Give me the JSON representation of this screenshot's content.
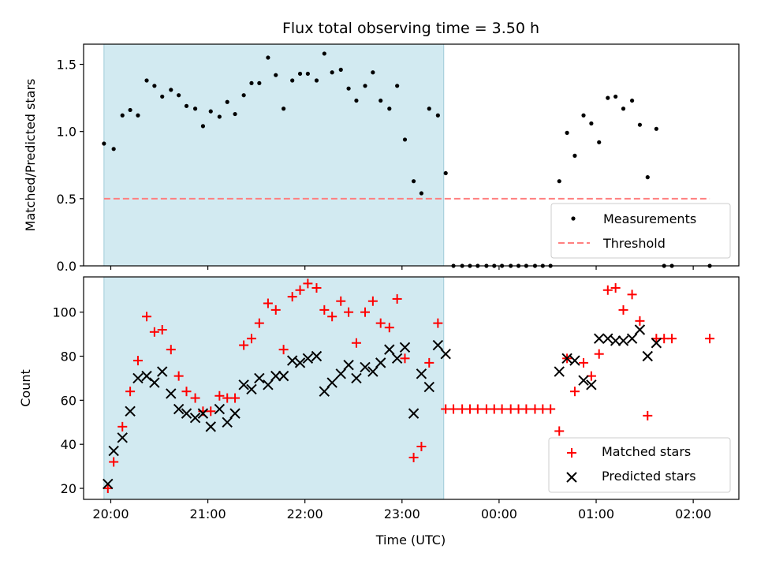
{
  "chart_data": [
    {
      "type": "scatter",
      "title": "Flux total observing time = 3.50 h",
      "xlabel": "",
      "ylabel": "Matched/Predicted stars",
      "ylim": [
        0,
        1.65
      ],
      "yticks": [
        "0.0",
        "0.5",
        "1.0",
        "1.5"
      ],
      "ytick_values": [
        0,
        0.5,
        1.0,
        1.5
      ],
      "xlim_hours": [
        19.72,
        26.47
      ],
      "highlight_span_hours": [
        19.93,
        23.43
      ],
      "highlight_color": "#add8e6",
      "legend_position": "lower right",
      "legend": {
        "measurements": "Measurements",
        "threshold": "Threshold"
      },
      "threshold": {
        "value": 0.5,
        "x_start": 19.93,
        "x_end": 26.17,
        "color": "#ff7f7f"
      },
      "series": [
        {
          "name": "Measurements",
          "color": "#000000",
          "x": [
            19.93,
            20.03,
            20.12,
            20.2,
            20.28,
            20.37,
            20.45,
            20.53,
            20.62,
            20.7,
            20.78,
            20.87,
            20.95,
            21.03,
            21.12,
            21.2,
            21.28,
            21.37,
            21.45,
            21.53,
            21.62,
            21.7,
            21.78,
            21.87,
            21.95,
            22.03,
            22.12,
            22.2,
            22.28,
            22.37,
            22.45,
            22.53,
            22.62,
            22.7,
            22.78,
            22.87,
            22.95,
            23.03,
            23.12,
            23.2,
            23.28,
            23.37,
            23.45,
            23.53,
            23.62,
            23.7,
            23.78,
            23.87,
            23.95,
            24.03,
            24.12,
            24.2,
            24.28,
            24.37,
            24.45,
            24.53,
            24.62,
            24.7,
            24.78,
            24.87,
            24.95,
            25.03,
            25.12,
            25.2,
            25.28,
            25.37,
            25.45,
            25.53,
            25.62,
            25.7,
            25.78,
            26.17
          ],
          "y": [
            0.91,
            0.87,
            1.12,
            1.16,
            1.12,
            1.38,
            1.34,
            1.26,
            1.31,
            1.27,
            1.19,
            1.17,
            1.04,
            1.15,
            1.11,
            1.22,
            1.13,
            1.27,
            1.36,
            1.36,
            1.55,
            1.42,
            1.17,
            1.38,
            1.43,
            1.43,
            1.38,
            1.58,
            1.44,
            1.46,
            1.32,
            1.23,
            1.34,
            1.44,
            1.23,
            1.17,
            1.34,
            0.94,
            0.63,
            0.54,
            1.17,
            1.12,
            0.69,
            0,
            0,
            0,
            0,
            0,
            0,
            0,
            0,
            0,
            0,
            0,
            0,
            0,
            0.63,
            0.99,
            0.82,
            1.12,
            1.06,
            0.92,
            1.25,
            1.26,
            1.17,
            1.23,
            1.05,
            0.66,
            1.02,
            0,
            0,
            0
          ]
        }
      ]
    },
    {
      "type": "scatter",
      "title": "",
      "xlabel": "Time (UTC)",
      "ylabel": "Count",
      "ylim": [
        15,
        116
      ],
      "yticks": [
        "20",
        "40",
        "60",
        "80",
        "100"
      ],
      "ytick_values": [
        20,
        40,
        60,
        80,
        100
      ],
      "xlim_hours": [
        19.72,
        26.47
      ],
      "xtick_values": [
        20,
        21,
        22,
        23,
        24,
        25,
        26
      ],
      "xticks": [
        "20:00",
        "21:00",
        "22:00",
        "23:00",
        "00:00",
        "01:00",
        "02:00"
      ],
      "highlight_span_hours": [
        19.93,
        23.43
      ],
      "highlight_color": "#add8e6",
      "legend_position": "lower right",
      "legend": {
        "matched": "Matched stars",
        "predicted": "Predicted stars"
      },
      "series": [
        {
          "name": "Matched stars",
          "color": "#ff0000",
          "marker": "+",
          "x": [
            19.97,
            20.03,
            20.12,
            20.2,
            20.28,
            20.37,
            20.45,
            20.53,
            20.62,
            20.7,
            20.78,
            20.87,
            20.95,
            21.03,
            21.12,
            21.2,
            21.28,
            21.37,
            21.45,
            21.53,
            21.62,
            21.7,
            21.78,
            21.87,
            21.95,
            22.03,
            22.12,
            22.2,
            22.28,
            22.37,
            22.45,
            22.53,
            22.62,
            22.7,
            22.78,
            22.87,
            22.95,
            23.03,
            23.12,
            23.2,
            23.28,
            23.37,
            23.45,
            23.53,
            23.62,
            23.7,
            23.78,
            23.87,
            23.95,
            24.03,
            24.12,
            24.2,
            24.28,
            24.37,
            24.45,
            24.53,
            24.62,
            24.7,
            24.78,
            24.87,
            24.95,
            25.03,
            25.12,
            25.2,
            25.28,
            25.37,
            25.45,
            25.53,
            25.62,
            25.7,
            25.78,
            26.17
          ],
          "y": [
            20,
            32,
            48,
            64,
            78,
            98,
            91,
            92,
            83,
            71,
            64,
            61,
            55,
            55,
            62,
            61,
            61,
            85,
            88,
            95,
            104,
            101,
            83,
            107,
            110,
            113,
            111,
            101,
            98,
            105,
            100,
            86,
            100,
            105,
            95,
            93,
            106,
            79,
            34,
            39,
            77,
            95,
            56,
            56,
            56,
            56,
            56,
            56,
            56,
            56,
            56,
            56,
            56,
            56,
            56,
            56,
            46,
            79,
            64,
            77,
            71,
            81,
            110,
            111,
            101,
            108,
            96,
            53,
            88,
            88,
            88,
            88
          ]
        },
        {
          "name": "Predicted stars",
          "color": "#000000",
          "marker": "x",
          "x": [
            19.97,
            20.03,
            20.12,
            20.2,
            20.28,
            20.37,
            20.45,
            20.53,
            20.62,
            20.7,
            20.78,
            20.87,
            20.95,
            21.03,
            21.12,
            21.2,
            21.28,
            21.37,
            21.45,
            21.53,
            21.62,
            21.7,
            21.78,
            21.87,
            21.95,
            22.03,
            22.12,
            22.2,
            22.28,
            22.37,
            22.45,
            22.53,
            22.62,
            22.7,
            22.78,
            22.87,
            22.95,
            23.03,
            23.12,
            23.2,
            23.28,
            23.37,
            23.45,
            24.62,
            24.7,
            24.78,
            24.87,
            24.95,
            25.03,
            25.12,
            25.2,
            25.28,
            25.37,
            25.45,
            25.53,
            25.62
          ],
          "y": [
            22,
            37,
            43,
            55,
            70,
            71,
            68,
            73,
            63,
            56,
            54,
            52,
            54,
            48,
            56,
            50,
            54,
            67,
            65,
            70,
            67,
            71,
            71,
            78,
            77,
            79,
            80,
            64,
            68,
            72,
            76,
            70,
            75,
            73,
            77,
            83,
            79,
            84,
            54,
            72,
            66,
            85,
            81,
            73,
            79,
            78,
            69,
            67,
            88,
            88,
            87,
            87,
            88,
            92,
            80,
            86
          ]
        }
      ]
    }
  ]
}
